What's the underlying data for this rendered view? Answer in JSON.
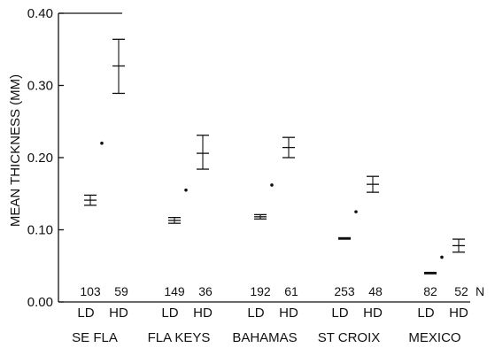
{
  "chart_data": {
    "type": "scatter",
    "title": "",
    "ylabel": "MEAN THICKNESS (MM)",
    "xlabel": "",
    "ylim": [
      0.0,
      0.4
    ],
    "yticks": [
      "0.00",
      "0.10",
      "0.20",
      "0.30",
      "0.40"
    ],
    "n_axis_label": "N",
    "groups": [
      {
        "name": "SE FLA",
        "series": [
          {
            "label": "LD",
            "n": "103",
            "mean": 0.141,
            "ci": [
              0.134,
              0.148
            ]
          },
          {
            "label": "HD",
            "n": "59",
            "mean": 0.327,
            "ci": [
              0.289,
              0.364
            ]
          }
        ],
        "point": 0.22
      },
      {
        "name": "FLA KEYS",
        "series": [
          {
            "label": "LD",
            "n": "149",
            "mean": 0.113,
            "ci": [
              0.109,
              0.117
            ]
          },
          {
            "label": "HD",
            "n": "36",
            "mean": 0.206,
            "ci": [
              0.184,
              0.231
            ]
          }
        ],
        "point": 0.155
      },
      {
        "name": "BAHAMAS",
        "series": [
          {
            "label": "LD",
            "n": "192",
            "mean": 0.118,
            "ci": [
              0.115,
              0.121
            ]
          },
          {
            "label": "HD",
            "n": "61",
            "mean": 0.214,
            "ci": [
              0.2,
              0.228
            ]
          }
        ],
        "point": 0.162
      },
      {
        "name": "ST CROIX",
        "series": [
          {
            "label": "LD",
            "n": "253",
            "mean": 0.088,
            "ci": [
              0.087,
              0.089
            ]
          },
          {
            "label": "HD",
            "n": "48",
            "mean": 0.163,
            "ci": [
              0.152,
              0.174
            ]
          }
        ],
        "point": 0.125
      },
      {
        "name": "MEXICO",
        "series": [
          {
            "label": "LD",
            "n": "82",
            "mean": 0.04,
            "ci": [
              0.039,
              0.041
            ]
          },
          {
            "label": "HD",
            "n": "52",
            "mean": 0.078,
            "ci": [
              0.069,
              0.087
            ]
          }
        ],
        "point": 0.062
      }
    ]
  }
}
